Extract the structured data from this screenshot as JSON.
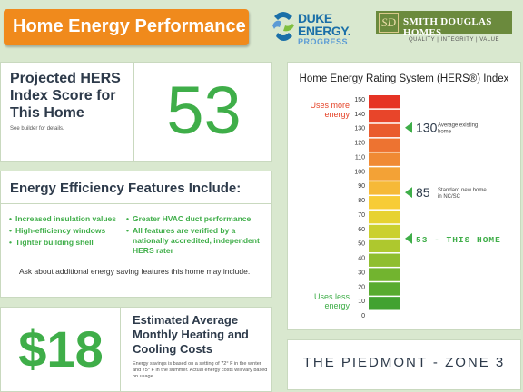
{
  "header": {
    "title": "Home Energy Performance"
  },
  "logos": {
    "duke_line1": "DUKE",
    "duke_line2": "ENERGY.",
    "duke_sub": "PROGRESS",
    "sd_monogram": "SD",
    "sd_name": "SMITH DOUGLAS HOMES",
    "sd_tagline": "QUALITY | INTEGRITY | VALUE"
  },
  "projected": {
    "label": "Projected HERS Index Score for This Home",
    "note": "See builder for details.",
    "score": "53"
  },
  "features": {
    "heading": "Energy Efficiency Features Include:",
    "left": [
      "Increased insulation values",
      "High-efficiency windows",
      "Tighter building shell"
    ],
    "right": [
      "Greater HVAC duct performance",
      "All features are verified by a nationally accredited, independent HERS rater"
    ],
    "ask": "Ask about additional energy saving features this home may include."
  },
  "cost": {
    "amount": "$18",
    "label": "Estimated Average Monthly Heating and Cooling Costs",
    "note": "Energy savings is based on a setting of 72° F in the winter and 75° F in the summer. Actual energy costs will vary based on usage."
  },
  "zone": {
    "text": "THE PIEDMONT - ZONE 3"
  },
  "chart_data": {
    "type": "bar",
    "title": "Home Energy Rating System (HERS®) Index",
    "top_label": "Uses more energy",
    "bottom_label": "Uses less energy",
    "ticks": [
      150,
      140,
      130,
      120,
      110,
      100,
      90,
      80,
      70,
      60,
      50,
      40,
      30,
      20,
      10,
      0
    ],
    "scale_colors": [
      "#e63324",
      "#e8452a",
      "#ea5b2e",
      "#ed7331",
      "#f08a34",
      "#f3a236",
      "#f6b938",
      "#f7cc36",
      "#e7d231",
      "#cbd02f",
      "#aec82e",
      "#8fbe2e",
      "#72b42f",
      "#58ab30",
      "#42a231"
    ],
    "markers": [
      {
        "value": 130,
        "label_number": "130",
        "label_text": "Average existing home"
      },
      {
        "value": 85,
        "label_number": "85",
        "label_text": "Standard new home in NC/SC"
      },
      {
        "value": 53,
        "label_number": "53",
        "label_text": "- THIS HOME"
      }
    ],
    "marker_color": "#3fae49",
    "top_label_color": "#e5452a",
    "bottom_label_color": "#3fae49"
  }
}
